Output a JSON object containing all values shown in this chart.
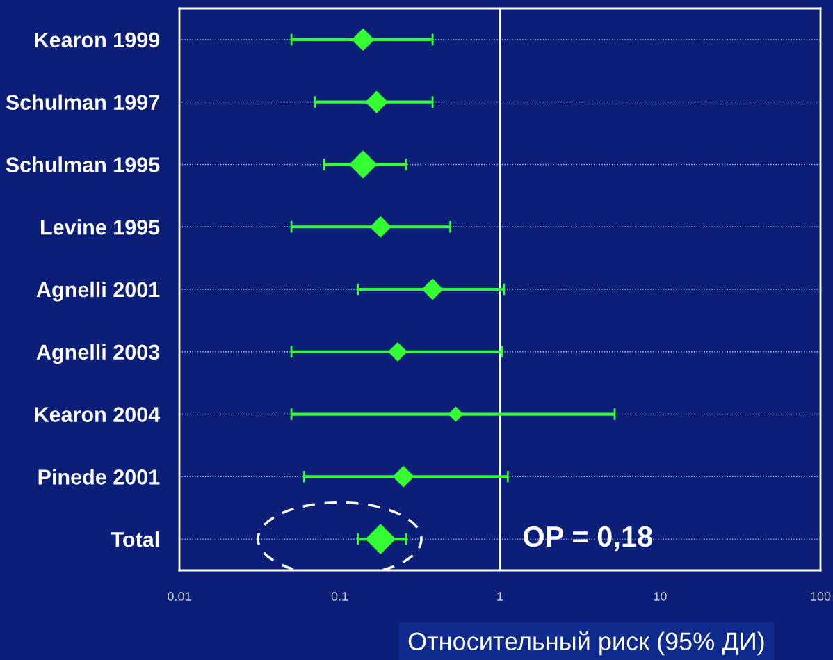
{
  "chart_data": {
    "type": "scatter",
    "orientation": "horizontal",
    "log": "x",
    "categories": [
      "Kearon 1999",
      "Schulman 1997",
      "Schulman 1995",
      "Levine 1995",
      "Agnelli 2001",
      "Agnelli 2003",
      "Kearon 2004",
      "Pinede 2001",
      "Total"
    ],
    "values": [
      0.14,
      0.17,
      0.14,
      0.18,
      0.38,
      0.23,
      0.53,
      0.25,
      0.18
    ],
    "errors": [
      [
        0.05,
        0.38
      ],
      [
        0.07,
        0.38
      ],
      [
        0.08,
        0.26
      ],
      [
        0.05,
        0.49
      ],
      [
        0.13,
        1.06
      ],
      [
        0.05,
        1.03
      ],
      [
        0.05,
        5.2
      ],
      [
        0.06,
        1.12
      ],
      [
        0.13,
        0.26
      ]
    ],
    "sizes": [
      0.55,
      0.55,
      0.85,
      0.5,
      0.5,
      0.4,
      0.25,
      0.5,
      1
    ],
    "color": "#33ff33",
    "marker": "diamond",
    "grid": "y",
    "xlim": [
      0.01,
      100
    ],
    "xticks": [
      0.01,
      0.1,
      1,
      10,
      100
    ],
    "xlabel": "Относительный риск (95% ДИ)",
    "ref_lines": [
      {
        "axis": "x",
        "value": 1,
        "color": "#ffffff"
      }
    ],
    "annotations": [
      "OP = 0,18"
    ]
  }
}
